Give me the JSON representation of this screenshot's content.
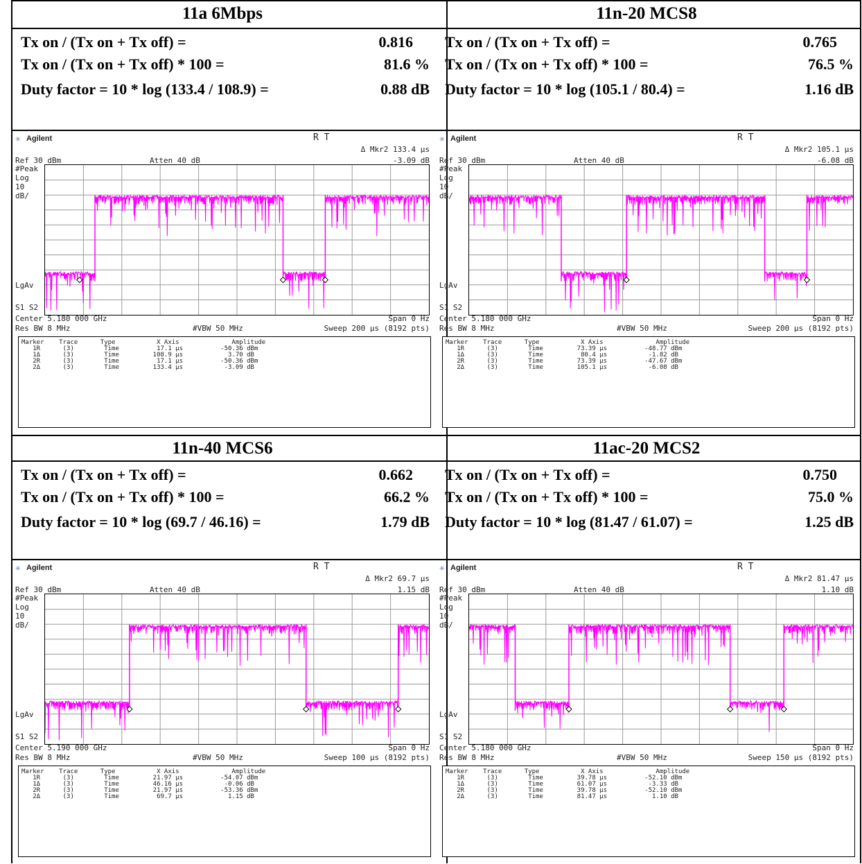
{
  "labels": {
    "ratio": "Tx on / (Tx on + Tx off) =",
    "percent": "Tx on / (Tx on + Tx off) * 100 =",
    "brand": "Agilent",
    "rt": "R   T",
    "ref": "Ref 30 dBm",
    "atten": "Atten 40 dB",
    "peak": "#Peak",
    "log": "Log",
    "ten": "10",
    "dbdiv": "dB/",
    "lgav": "LgAv",
    "s1s2": "S1  S2",
    "span": "Span 0 Hz",
    "resbw": "Res BW 8 MHz",
    "vbw": "#VBW 50 MHz",
    "markers_header": "Marker    Trace      Type           X Axis              Amplitude"
  },
  "panels": [
    {
      "title": "11a 6Mbps",
      "ratio_value": "0.816",
      "percent_value": "81.6 %",
      "duty_label": "Duty factor = 10 * log (133.4 / 108.9) =",
      "duty_value": "0.88 dB",
      "mkr_x": "Δ Mkr2   133.4 μs",
      "mkr_y": "-3.09 dB",
      "center": "Center 5.180 000 GHz",
      "sweep": "Sweep 200 μs (8192 pts)",
      "markers": "   1R      (3)        Time          17.1 μs          -50.36 dBm\n   1Δ      (3)        Time         108.9 μs            3.70 dB\n   2R      (3)        Time          17.1 μs          -50.36 dBm\n   2Δ      (3)        Time         133.4 μs           -3.09 dB",
      "trace_segments": [
        [
          0,
          0.13,
          "low"
        ],
        [
          0.13,
          0.62,
          "high"
        ],
        [
          0.62,
          0.73,
          "low"
        ],
        [
          0.73,
          1.0,
          "high"
        ]
      ],
      "mk_pos": [
        0.09,
        0.62,
        0.73
      ]
    },
    {
      "title": "11n-20 MCS8",
      "ratio_value": "0.765",
      "percent_value": "76.5 %",
      "duty_label": "Duty factor = 10 * log (105.1 / 80.4) =",
      "duty_value": "1.16 dB",
      "mkr_x": "Δ Mkr2   105.1 μs",
      "mkr_y": "-6.08 dB",
      "center": "Center 5.180 000 GHz",
      "sweep": "Sweep 200 μs (8192 pts)",
      "markers": "   1R      (3)        Time         73.39 μs          -48.77 dBm\n   1Δ      (3)        Time          80.4 μs           -1.82 dB\n   2R      (3)        Time         73.39 μs          -47.67 dBm\n   2Δ      (3)        Time         105.1 μs           -6.08 dB",
      "trace_segments": [
        [
          0,
          0.24,
          "high"
        ],
        [
          0.24,
          0.41,
          "low"
        ],
        [
          0.41,
          0.77,
          "high"
        ],
        [
          0.77,
          0.88,
          "low"
        ],
        [
          0.88,
          1.0,
          "high"
        ]
      ],
      "mk_pos": [
        0.41,
        0.88
      ]
    },
    {
      "title": "11n-40 MCS6",
      "ratio_value": "0.662",
      "percent_value": "66.2 %",
      "duty_label": "Duty factor = 10 * log (69.7 / 46.16) =",
      "duty_value": "1.79 dB",
      "mkr_x": "Δ Mkr2   69.7 μs",
      "mkr_y": "1.15 dB",
      "center": "Center 5.190 000 GHz",
      "sweep": "Sweep 100 μs (8192 pts)",
      "markers": "   1R      (3)        Time         21.97 μs          -54.07 dBm\n   1Δ      (3)        Time         46.16 μs           -0.06 dB\n   2R      (3)        Time         21.97 μs          -53.36 dBm\n   2Δ      (3)        Time          69.7 μs            1.15 dB",
      "trace_segments": [
        [
          0,
          0.22,
          "low"
        ],
        [
          0.22,
          0.68,
          "high"
        ],
        [
          0.68,
          0.92,
          "low"
        ],
        [
          0.92,
          1.0,
          "high"
        ]
      ],
      "mk_pos": [
        0.22,
        0.68,
        0.92
      ]
    },
    {
      "title": "11ac-20 MCS2",
      "ratio_value": "0.750",
      "percent_value": "75.0 %",
      "duty_label": "Duty factor = 10 * log (81.47 / 61.07) =",
      "duty_value": "1.25 dB",
      "mkr_x": "Δ Mkr2   81.47 μs",
      "mkr_y": "1.10 dB",
      "center": "Center 5.180 000 GHz",
      "sweep": "Sweep 150 μs (8192 pts)",
      "markers": "   1R      (3)        Time         39.78 μs          -52.10 dBm\n   1Δ      (3)        Time         61.07 μs           -3.33 dB\n   2R      (3)        Time         39.78 μs          -52.10 dBm\n   2Δ      (3)        Time         81.47 μs            1.10 dB",
      "trace_segments": [
        [
          0,
          0.12,
          "high"
        ],
        [
          0.12,
          0.26,
          "low"
        ],
        [
          0.26,
          0.68,
          "high"
        ],
        [
          0.68,
          0.82,
          "low"
        ],
        [
          0.82,
          1.0,
          "high"
        ]
      ],
      "mk_pos": [
        0.26,
        0.68,
        0.82
      ]
    }
  ]
}
